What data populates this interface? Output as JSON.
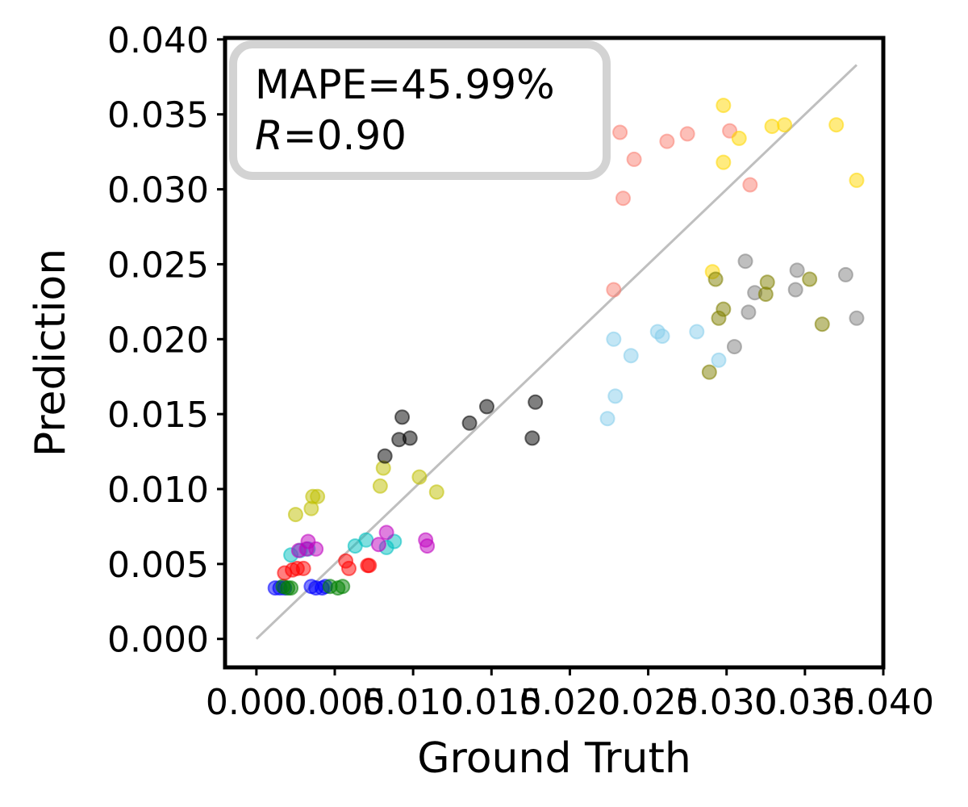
{
  "chart_data": {
    "type": "scatter",
    "xlabel": "Ground Truth",
    "ylabel": "Prediction",
    "xlim": [
      -0.002,
      0.04
    ],
    "ylim": [
      -0.0019,
      0.0401
    ],
    "xticks": [
      "0.000",
      "0.005",
      "0.010",
      "0.015",
      "0.020",
      "0.025",
      "0.030",
      "0.035",
      "0.040"
    ],
    "yticks": [
      "0.000",
      "0.005",
      "0.010",
      "0.015",
      "0.020",
      "0.025",
      "0.030",
      "0.035",
      "0.040"
    ],
    "xtick_values": [
      0.0,
      0.005,
      0.01,
      0.015,
      0.02,
      0.025,
      0.03,
      0.035,
      0.04
    ],
    "ytick_values": [
      0.0,
      0.005,
      0.01,
      0.015,
      0.02,
      0.025,
      0.03,
      0.035,
      0.04
    ],
    "identity_line": {
      "from": [
        0.0,
        0.0
      ],
      "to": [
        0.0383,
        0.0383
      ],
      "color": "#bfbfbf"
    },
    "annotation": {
      "line1": "MAPE=45.99%",
      "r_symbol": "R",
      "line2_value": "=0.90",
      "border_color": "#d3d3d3"
    },
    "legend": null,
    "grid": false,
    "series": [
      {
        "color": "#0000ff",
        "points": [
          [
            0.0012,
            0.0034
          ],
          [
            0.0015,
            0.0034
          ],
          [
            0.0018,
            0.0034
          ],
          [
            0.0035,
            0.0035
          ],
          [
            0.0038,
            0.0034
          ],
          [
            0.0042,
            0.0034
          ],
          [
            0.0044,
            0.0035
          ]
        ]
      },
      {
        "color": "#008000",
        "points": [
          [
            0.0017,
            0.0035
          ],
          [
            0.002,
            0.0034
          ],
          [
            0.0022,
            0.0034
          ],
          [
            0.0047,
            0.0035
          ],
          [
            0.0052,
            0.0034
          ],
          [
            0.0055,
            0.0035
          ]
        ]
      },
      {
        "color": "#ff0000",
        "points": [
          [
            0.0018,
            0.0044
          ],
          [
            0.0023,
            0.0046
          ],
          [
            0.0026,
            0.0047
          ],
          [
            0.003,
            0.0047
          ],
          [
            0.0057,
            0.0052
          ],
          [
            0.0059,
            0.0047
          ],
          [
            0.0071,
            0.0049
          ],
          [
            0.0072,
            0.0049
          ]
        ]
      },
      {
        "color": "#00bfbf",
        "points": [
          [
            0.0022,
            0.0056
          ],
          [
            0.0028,
            0.0059
          ],
          [
            0.0033,
            0.006
          ],
          [
            0.0063,
            0.0062
          ],
          [
            0.007,
            0.0066
          ],
          [
            0.0083,
            0.0061
          ],
          [
            0.0088,
            0.0065
          ]
        ]
      },
      {
        "color": "#bf00bf",
        "points": [
          [
            0.0027,
            0.0059
          ],
          [
            0.0032,
            0.006
          ],
          [
            0.0033,
            0.0065
          ],
          [
            0.0038,
            0.006
          ],
          [
            0.0078,
            0.0063
          ],
          [
            0.0083,
            0.0071
          ],
          [
            0.0108,
            0.0066
          ],
          [
            0.0109,
            0.0062
          ]
        ]
      },
      {
        "color": "#bfbf00",
        "points": [
          [
            0.0025,
            0.0083
          ],
          [
            0.0035,
            0.0087
          ],
          [
            0.0036,
            0.0095
          ],
          [
            0.0039,
            0.0095
          ],
          [
            0.0079,
            0.0102
          ],
          [
            0.0081,
            0.0114
          ],
          [
            0.0104,
            0.0108
          ],
          [
            0.0115,
            0.0098
          ]
        ]
      },
      {
        "color": "#000000",
        "points": [
          [
            0.0082,
            0.0122
          ],
          [
            0.0091,
            0.0133
          ],
          [
            0.0093,
            0.0148
          ],
          [
            0.0098,
            0.0134
          ],
          [
            0.0136,
            0.0144
          ],
          [
            0.0147,
            0.0155
          ],
          [
            0.0176,
            0.0134
          ],
          [
            0.0178,
            0.0158
          ]
        ]
      },
      {
        "color": "#87ceeb",
        "points": [
          [
            0.0224,
            0.0147
          ],
          [
            0.0229,
            0.0162
          ],
          [
            0.0228,
            0.02
          ],
          [
            0.0239,
            0.0189
          ],
          [
            0.0256,
            0.0205
          ],
          [
            0.0259,
            0.0202
          ],
          [
            0.0281,
            0.0205
          ],
          [
            0.0295,
            0.0186
          ]
        ]
      },
      {
        "color": "#fa8072",
        "points": [
          [
            0.0228,
            0.0233
          ],
          [
            0.0232,
            0.0338
          ],
          [
            0.0234,
            0.0294
          ],
          [
            0.0241,
            0.032
          ],
          [
            0.0262,
            0.0332
          ],
          [
            0.0275,
            0.0337
          ],
          [
            0.0302,
            0.0339
          ],
          [
            0.0315,
            0.0303
          ]
        ]
      },
      {
        "color": "#ffd700",
        "points": [
          [
            0.0291,
            0.0245
          ],
          [
            0.0298,
            0.0356
          ],
          [
            0.0298,
            0.0318
          ],
          [
            0.0308,
            0.0334
          ],
          [
            0.0329,
            0.0342
          ],
          [
            0.0337,
            0.0343
          ],
          [
            0.037,
            0.0343
          ],
          [
            0.0383,
            0.0306
          ]
        ]
      },
      {
        "color": "#808080",
        "points": [
          [
            0.0305,
            0.0195
          ],
          [
            0.0312,
            0.0252
          ],
          [
            0.0314,
            0.0218
          ],
          [
            0.0318,
            0.0231
          ],
          [
            0.0344,
            0.0233
          ],
          [
            0.0345,
            0.0246
          ],
          [
            0.0376,
            0.0243
          ],
          [
            0.0383,
            0.0214
          ]
        ]
      },
      {
        "color": "#808000",
        "points": [
          [
            0.0289,
            0.0178
          ],
          [
            0.0293,
            0.024
          ],
          [
            0.0295,
            0.0214
          ],
          [
            0.0298,
            0.022
          ],
          [
            0.0325,
            0.023
          ],
          [
            0.0326,
            0.0238
          ],
          [
            0.0353,
            0.024
          ],
          [
            0.0361,
            0.021
          ]
        ]
      }
    ]
  }
}
